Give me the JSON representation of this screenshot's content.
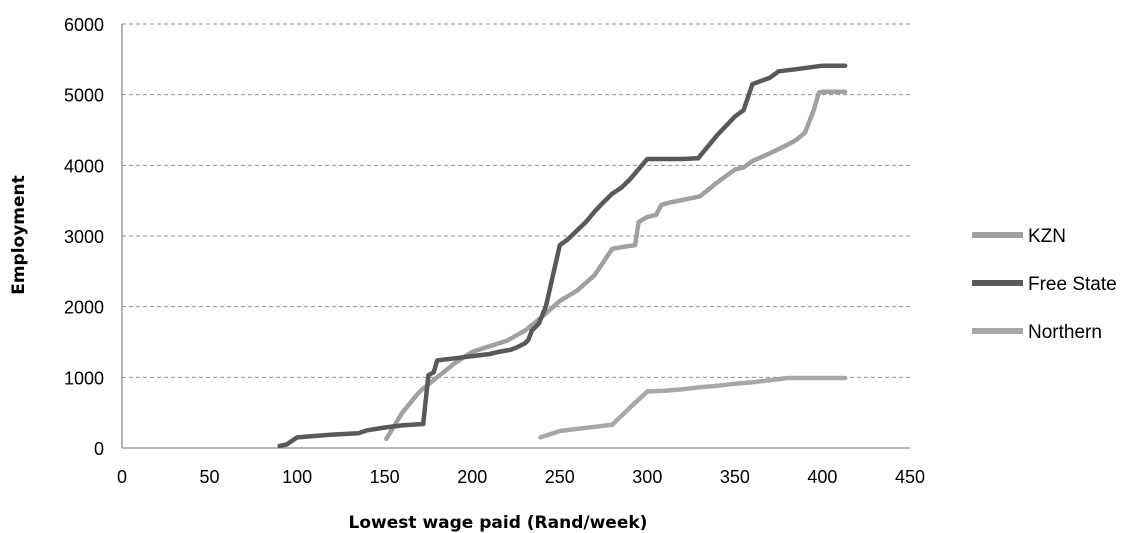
{
  "chart_data": {
    "type": "line",
    "xlabel": "Lowest wage paid (Rand/week)",
    "ylabel": "Employment",
    "xlim": [
      0,
      450
    ],
    "ylim": [
      0,
      6000
    ],
    "xticks": [
      0,
      50,
      100,
      150,
      200,
      250,
      300,
      350,
      400,
      450
    ],
    "yticks": [
      0,
      1000,
      2000,
      3000,
      4000,
      5000,
      6000
    ],
    "grid": "horizontal dashed",
    "legend_position": "right",
    "series": [
      {
        "name": "KZN",
        "color": "#a0a0a0",
        "x": [
          151,
          160,
          170,
          180,
          190,
          200,
          210,
          220,
          230,
          240,
          250,
          260,
          270,
          280,
          290,
          293,
          295,
          300,
          305,
          308,
          312,
          320,
          330,
          340,
          350,
          355,
          360,
          370,
          380,
          385,
          390,
          395,
          398,
          400,
          413
        ],
        "y": [
          130,
          500,
          800,
          1000,
          1200,
          1360,
          1440,
          1520,
          1660,
          1860,
          2080,
          2230,
          2450,
          2820,
          2860,
          2870,
          3200,
          3270,
          3300,
          3440,
          3470,
          3510,
          3560,
          3760,
          3940,
          3970,
          4060,
          4170,
          4290,
          4360,
          4460,
          4780,
          5030,
          5040,
          5040
        ]
      },
      {
        "name": "Free State",
        "color": "#595959",
        "x": [
          90,
          94,
          97,
          100,
          110,
          120,
          135,
          140,
          150,
          160,
          172,
          175,
          178,
          180,
          190,
          200,
          210,
          215,
          222,
          226,
          230,
          232,
          234,
          238,
          242,
          250,
          255,
          260,
          265,
          270,
          275,
          280,
          285,
          290,
          300,
          310,
          320,
          329,
          340,
          350,
          355,
          360,
          370,
          375,
          385,
          400,
          413
        ],
        "y": [
          30,
          50,
          100,
          150,
          170,
          190,
          210,
          250,
          290,
          320,
          340,
          1030,
          1070,
          1240,
          1270,
          1300,
          1330,
          1360,
          1390,
          1430,
          1480,
          1530,
          1660,
          1760,
          2000,
          2870,
          2960,
          3080,
          3200,
          3350,
          3480,
          3600,
          3680,
          3800,
          4090,
          4090,
          4090,
          4100,
          4430,
          4690,
          4780,
          5150,
          5240,
          5330,
          5360,
          5410,
          5410
        ]
      },
      {
        "name": "Northern",
        "color": "#a8a8a8",
        "x": [
          239,
          250,
          260,
          270,
          280,
          290,
          300,
          310,
          320,
          330,
          340,
          350,
          360,
          370,
          380,
          390,
          400,
          413
        ],
        "y": [
          150,
          240,
          270,
          300,
          330,
          570,
          800,
          810,
          830,
          860,
          880,
          910,
          930,
          960,
          990,
          990,
          990,
          990
        ]
      }
    ]
  }
}
